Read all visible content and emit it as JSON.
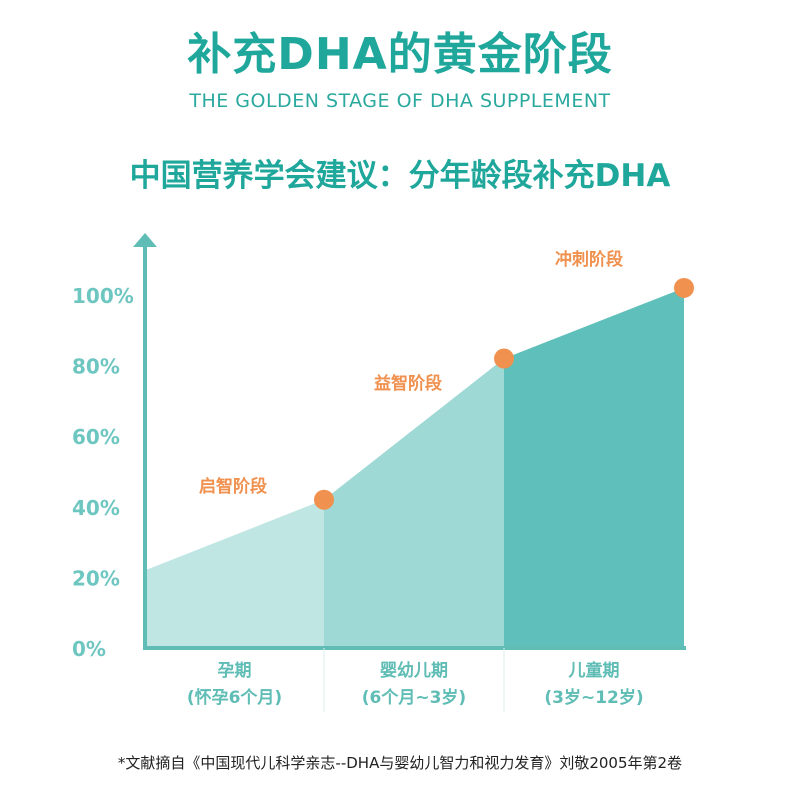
{
  "page": {
    "title": "补充DHA的黄金阶段",
    "subtitle": "THE GOLDEN STAGE OF DHA SUPPLEMENT",
    "heading": "中国营养学会建议：分年龄段补充DHA",
    "footnote": "*文献摘自《中国现代儿科学亲志--DHA与婴幼儿智力和视力发育》刘敬2005年第2卷"
  },
  "colors": {
    "accent": "#1fa79b",
    "axis": "#5fbdb5",
    "stage": "#f0914f",
    "area1": "#bfe6e3",
    "area2": "#9fd9d5",
    "area3": "#5fbfba"
  },
  "chart_data": {
    "type": "area",
    "yticks": [
      "0%",
      "20%",
      "40%",
      "60%",
      "80%",
      "100%"
    ],
    "ylim": [
      0,
      100
    ],
    "categories": [
      {
        "name": "孕期",
        "range": "(怀孕6个月)"
      },
      {
        "name": "婴幼儿期",
        "range": "(6个月~3岁)"
      },
      {
        "name": "儿童期",
        "range": "(3岁~12岁)"
      }
    ],
    "points": [
      22,
      42,
      82,
      102
    ],
    "stages": [
      "启智阶段",
      "益智阶段",
      "冲刺阶段"
    ],
    "grid": false,
    "legend": "none"
  }
}
